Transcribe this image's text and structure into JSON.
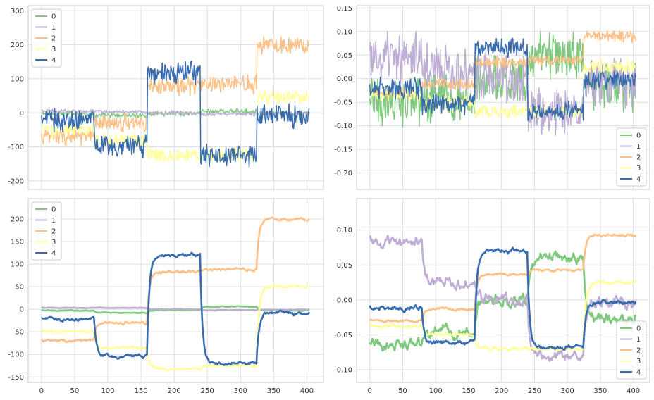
{
  "chart_data": [
    {
      "type": "line",
      "title": "",
      "xlabel": "",
      "ylabel": "",
      "xlim": [
        -20,
        425
      ],
      "ylim": [
        -225,
        315
      ],
      "xticks": [],
      "yticks": [
        -200,
        -100,
        0,
        100,
        200,
        300
      ],
      "grid": true,
      "legend_placement": "top-left",
      "noise": 1,
      "series": [
        {
          "name": "0",
          "color": "#7fc97f",
          "noise": 6,
          "segments": [
            [
              0,
              80,
              -2
            ],
            [
              80,
              160,
              -8
            ],
            [
              160,
              240,
              -2
            ],
            [
              240,
              325,
              5
            ],
            [
              325,
              405,
              -3
            ]
          ]
        },
        {
          "name": "1",
          "color": "#beaed4",
          "noise": 5,
          "segments": [
            [
              0,
              80,
              5
            ],
            [
              80,
              160,
              3
            ],
            [
              160,
              240,
              0
            ],
            [
              240,
              325,
              -3
            ],
            [
              325,
              405,
              -1
            ]
          ]
        },
        {
          "name": "2",
          "color": "#fdc086",
          "noise": 22,
          "segments": [
            [
              0,
              80,
              -70
            ],
            [
              80,
              160,
              -30
            ],
            [
              160,
              240,
              78
            ],
            [
              240,
              325,
              85
            ],
            [
              325,
              405,
              200
            ]
          ]
        },
        {
          "name": "3",
          "color": "#ffff99",
          "noise": 18,
          "segments": [
            [
              0,
              80,
              -50
            ],
            [
              80,
              160,
              -80
            ],
            [
              160,
              240,
              -125
            ],
            [
              240,
              325,
              -125
            ],
            [
              325,
              405,
              45
            ]
          ]
        },
        {
          "name": "4",
          "color": "#386cb0",
          "noise": 28,
          "segments": [
            [
              0,
              80,
              -20
            ],
            [
              80,
              160,
              -100
            ],
            [
              160,
              240,
              120
            ],
            [
              240,
              325,
              -125
            ],
            [
              325,
              405,
              -8
            ]
          ]
        }
      ]
    },
    {
      "type": "line",
      "title": "",
      "xlabel": "",
      "ylabel": "",
      "xlim": [
        -20,
        425
      ],
      "ylim": [
        -0.235,
        0.155
      ],
      "xticks": [],
      "yticks": [
        -0.2,
        -0.15,
        -0.1,
        -0.05,
        0.0,
        0.05,
        0.1,
        0.15
      ],
      "yformat": 2,
      "grid": true,
      "legend_placement": "bottom-right",
      "noise": 1,
      "series": [
        {
          "name": "0",
          "color": "#7fc97f",
          "noise": 0.045,
          "segments": [
            [
              0,
              80,
              -0.05
            ],
            [
              80,
              160,
              -0.04
            ],
            [
              160,
              240,
              0.0
            ],
            [
              240,
              325,
              0.05
            ],
            [
              325,
              405,
              -0.02
            ]
          ]
        },
        {
          "name": "1",
          "color": "#beaed4",
          "noise": 0.045,
          "segments": [
            [
              0,
              80,
              0.04
            ],
            [
              80,
              160,
              0.02
            ],
            [
              160,
              240,
              0.0
            ],
            [
              240,
              325,
              -0.07
            ],
            [
              325,
              405,
              -0.01
            ]
          ]
        },
        {
          "name": "2",
          "color": "#fdc086",
          "noise": 0.01,
          "segments": [
            [
              0,
              80,
              -0.03
            ],
            [
              80,
              160,
              -0.012
            ],
            [
              160,
              240,
              0.035
            ],
            [
              240,
              325,
              0.04
            ],
            [
              325,
              405,
              0.09
            ]
          ]
        },
        {
          "name": "3",
          "color": "#ffff99",
          "noise": 0.012,
          "segments": [
            [
              0,
              80,
              -0.035
            ],
            [
              80,
              160,
              -0.05
            ],
            [
              160,
              240,
              -0.07
            ],
            [
              240,
              325,
              -0.07
            ],
            [
              325,
              405,
              0.025
            ]
          ]
        },
        {
          "name": "4",
          "color": "#386cb0",
          "noise": 0.018,
          "segments": [
            [
              0,
              80,
              -0.02
            ],
            [
              80,
              160,
              -0.055
            ],
            [
              160,
              240,
              0.065
            ],
            [
              240,
              325,
              -0.07
            ],
            [
              325,
              405,
              -0.005
            ]
          ]
        }
      ]
    },
    {
      "type": "line",
      "title": "",
      "xlabel": "",
      "ylabel": "",
      "xlim": [
        -20,
        425
      ],
      "ylim": [
        -162,
        245
      ],
      "xticks": [
        0,
        50,
        100,
        150,
        200,
        250,
        300,
        350,
        400
      ],
      "yticks": [
        -150,
        -100,
        -50,
        0,
        50,
        100,
        150,
        200
      ],
      "grid": true,
      "legend_placement": "top-left",
      "noise": 0.35,
      "series": [
        {
          "name": "0",
          "color": "#7fc97f",
          "noise": 6,
          "segments": [
            [
              0,
              80,
              -3
            ],
            [
              80,
              160,
              -8
            ],
            [
              160,
              240,
              -2
            ],
            [
              240,
              325,
              6
            ],
            [
              325,
              405,
              -3
            ]
          ]
        },
        {
          "name": "1",
          "color": "#beaed4",
          "noise": 5,
          "segments": [
            [
              0,
              80,
              3
            ],
            [
              80,
              160,
              3
            ],
            [
              160,
              240,
              0
            ],
            [
              240,
              325,
              -2
            ],
            [
              325,
              405,
              -1
            ]
          ]
        },
        {
          "name": "2",
          "color": "#fdc086",
          "noise": 22,
          "segments": [
            [
              0,
              80,
              -70
            ],
            [
              80,
              160,
              -30
            ],
            [
              160,
              240,
              82
            ],
            [
              240,
              325,
              88
            ],
            [
              325,
              405,
              200
            ]
          ]
        },
        {
          "name": "3",
          "color": "#ffff99",
          "noise": 18,
          "segments": [
            [
              0,
              80,
              -50
            ],
            [
              80,
              160,
              -85
            ],
            [
              160,
              240,
              -132
            ],
            [
              240,
              325,
              -125
            ],
            [
              325,
              405,
              50
            ]
          ]
        },
        {
          "name": "4",
          "color": "#386cb0",
          "noise": 28,
          "segments": [
            [
              0,
              80,
              -22
            ],
            [
              80,
              160,
              -105
            ],
            [
              160,
              240,
              120
            ],
            [
              240,
              325,
              -120
            ],
            [
              325,
              405,
              -8
            ]
          ]
        }
      ]
    },
    {
      "type": "line",
      "title": "",
      "xlabel": "",
      "ylabel": "",
      "xlim": [
        -20,
        425
      ],
      "ylim": [
        -0.118,
        0.145
      ],
      "xticks": [
        0,
        50,
        100,
        150,
        200,
        250,
        300,
        350,
        400
      ],
      "yticks": [
        -0.1,
        -0.05,
        0.0,
        0.05,
        0.1
      ],
      "yformat": 2,
      "grid": true,
      "legend_placement": "bottom-right",
      "noise": 0.45,
      "series": [
        {
          "name": "0",
          "color": "#7fc97f",
          "noise": 0.045,
          "segments": [
            [
              0,
              80,
              -0.065
            ],
            [
              80,
              160,
              -0.045
            ],
            [
              160,
              240,
              0.0
            ],
            [
              240,
              325,
              0.06
            ],
            [
              325,
              405,
              -0.03
            ]
          ]
        },
        {
          "name": "1",
          "color": "#beaed4",
          "noise": 0.045,
          "segments": [
            [
              0,
              80,
              0.08
            ],
            [
              80,
              160,
              0.025
            ],
            [
              160,
              240,
              0.0
            ],
            [
              240,
              325,
              -0.08
            ],
            [
              325,
              405,
              -0.005
            ]
          ]
        },
        {
          "name": "2",
          "color": "#fdc086",
          "noise": 0.01,
          "segments": [
            [
              0,
              80,
              -0.03
            ],
            [
              80,
              160,
              -0.013
            ],
            [
              160,
              240,
              0.037
            ],
            [
              240,
              325,
              0.043
            ],
            [
              325,
              405,
              0.092
            ]
          ]
        },
        {
          "name": "3",
          "color": "#ffff99",
          "noise": 0.012,
          "segments": [
            [
              0,
              80,
              -0.038
            ],
            [
              80,
              160,
              -0.05
            ],
            [
              160,
              240,
              -0.07
            ],
            [
              240,
              325,
              -0.07
            ],
            [
              325,
              405,
              0.025
            ]
          ]
        },
        {
          "name": "4",
          "color": "#386cb0",
          "noise": 0.018,
          "segments": [
            [
              0,
              80,
              -0.012
            ],
            [
              80,
              160,
              -0.062
            ],
            [
              160,
              240,
              0.07
            ],
            [
              240,
              325,
              -0.068
            ],
            [
              325,
              405,
              -0.005
            ]
          ]
        }
      ]
    }
  ]
}
